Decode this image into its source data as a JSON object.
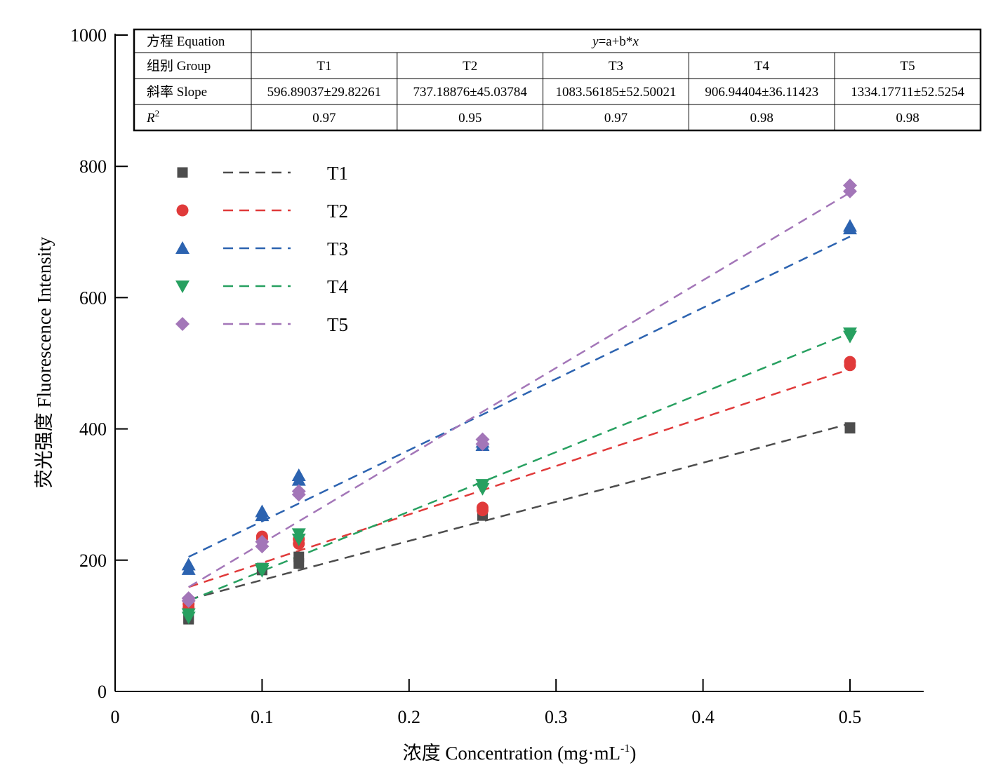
{
  "chart_data": {
    "type": "scatter",
    "xlabel": "浓度 Concentration (mg·mL",
    "xlabel_sup": "-1",
    "xlabel_end": ")",
    "ylabel": "荧光强度 Fluorescence Intensity",
    "xlim": [
      0,
      0.55
    ],
    "ylim": [
      0,
      1000
    ],
    "xticks": [
      "0",
      "0.1",
      "0.2",
      "0.3",
      "0.4",
      "0.5"
    ],
    "yticks": [
      "0",
      "200",
      "400",
      "600",
      "800",
      "1000"
    ],
    "grid": false,
    "legend_position": "top-left",
    "series": [
      {
        "name": "T1",
        "color": "#4d4d4d",
        "marker": "square",
        "points": [
          [
            0.05,
            110
          ],
          [
            0.05,
            112
          ],
          [
            0.1,
            185
          ],
          [
            0.1,
            188
          ],
          [
            0.125,
            195
          ],
          [
            0.125,
            205
          ],
          [
            0.25,
            268
          ],
          [
            0.25,
            272
          ],
          [
            0.5,
            402
          ],
          [
            0.5,
            401
          ]
        ],
        "fit": {
          "x": [
            0.05,
            0.5
          ],
          "y": [
            140,
            408
          ]
        }
      },
      {
        "name": "T2",
        "color": "#e03a3a",
        "marker": "circle",
        "points": [
          [
            0.05,
            128
          ],
          [
            0.05,
            133
          ],
          [
            0.1,
            233
          ],
          [
            0.1,
            236
          ],
          [
            0.125,
            225
          ],
          [
            0.125,
            232
          ],
          [
            0.25,
            276
          ],
          [
            0.25,
            280
          ],
          [
            0.5,
            497
          ],
          [
            0.5,
            502
          ]
        ],
        "fit": {
          "x": [
            0.05,
            0.5
          ],
          "y": [
            159,
            491
          ]
        }
      },
      {
        "name": "T3",
        "color": "#2c63b0",
        "marker": "triangle-up",
        "points": [
          [
            0.05,
            186
          ],
          [
            0.05,
            193
          ],
          [
            0.1,
            268
          ],
          [
            0.1,
            274
          ],
          [
            0.125,
            322
          ],
          [
            0.125,
            329
          ],
          [
            0.25,
            375
          ],
          [
            0.25,
            380
          ],
          [
            0.5,
            705
          ],
          [
            0.5,
            709
          ]
        ],
        "fit": {
          "x": [
            0.05,
            0.5
          ],
          "y": [
            205,
            693
          ]
        }
      },
      {
        "name": "T4",
        "color": "#27a060",
        "marker": "triangle-down",
        "points": [
          [
            0.05,
            113
          ],
          [
            0.05,
            118
          ],
          [
            0.1,
            184
          ],
          [
            0.1,
            187
          ],
          [
            0.125,
            232
          ],
          [
            0.125,
            240
          ],
          [
            0.25,
            309
          ],
          [
            0.25,
            315
          ],
          [
            0.5,
            541
          ],
          [
            0.5,
            546
          ]
        ],
        "fit": {
          "x": [
            0.05,
            0.5
          ],
          "y": [
            138,
            546
          ]
        }
      },
      {
        "name": "T5",
        "color": "#a376b8",
        "marker": "diamond",
        "points": [
          [
            0.05,
            138
          ],
          [
            0.05,
            142
          ],
          [
            0.1,
            221
          ],
          [
            0.1,
            228
          ],
          [
            0.125,
            300
          ],
          [
            0.125,
            305
          ],
          [
            0.25,
            377
          ],
          [
            0.25,
            384
          ],
          [
            0.5,
            762
          ],
          [
            0.5,
            771
          ]
        ],
        "fit": {
          "x": [
            0.05,
            0.5
          ],
          "y": [
            159,
            760
          ]
        }
      }
    ],
    "table": {
      "equation_label": "方程 Equation",
      "equation_y": "y",
      "equation_mid": "=a+b*",
      "equation_x": "x",
      "group_label": "组别 Group",
      "slope_label": "斜率 Slope",
      "r2_label": "R",
      "r2_sup": "2",
      "groups": [
        "T1",
        "T2",
        "T3",
        "T4",
        "T5"
      ],
      "slopes": [
        "596.89037±29.82261",
        "737.18876±45.03784",
        "1083.56185±52.50021",
        "906.94404±36.11423",
        "1334.17711±52.5254"
      ],
      "r2": [
        "0.97",
        "0.95",
        "0.97",
        "0.98",
        "0.98"
      ]
    }
  }
}
